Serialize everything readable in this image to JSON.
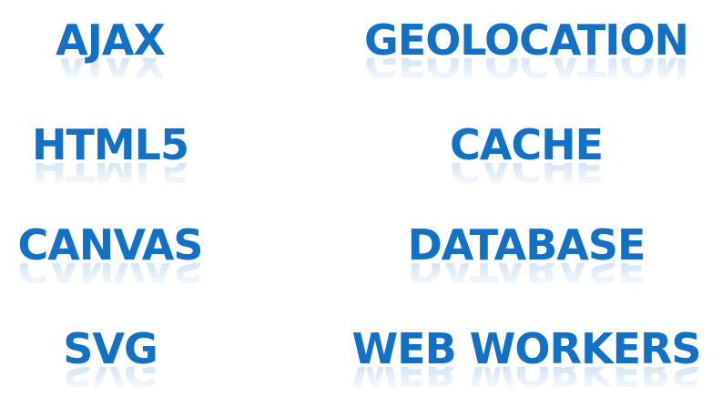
{
  "words": {
    "ajax": "AJAX",
    "geolocation": "GEOLOCATION",
    "html5": "HTML5",
    "cache": "CACHE",
    "canvas": "CANVAS",
    "database": "DATABASE",
    "svg": "SVG",
    "web_workers": "WEB WORKERS"
  },
  "colors": {
    "text": "#1271c4",
    "background": "#ffffff"
  }
}
